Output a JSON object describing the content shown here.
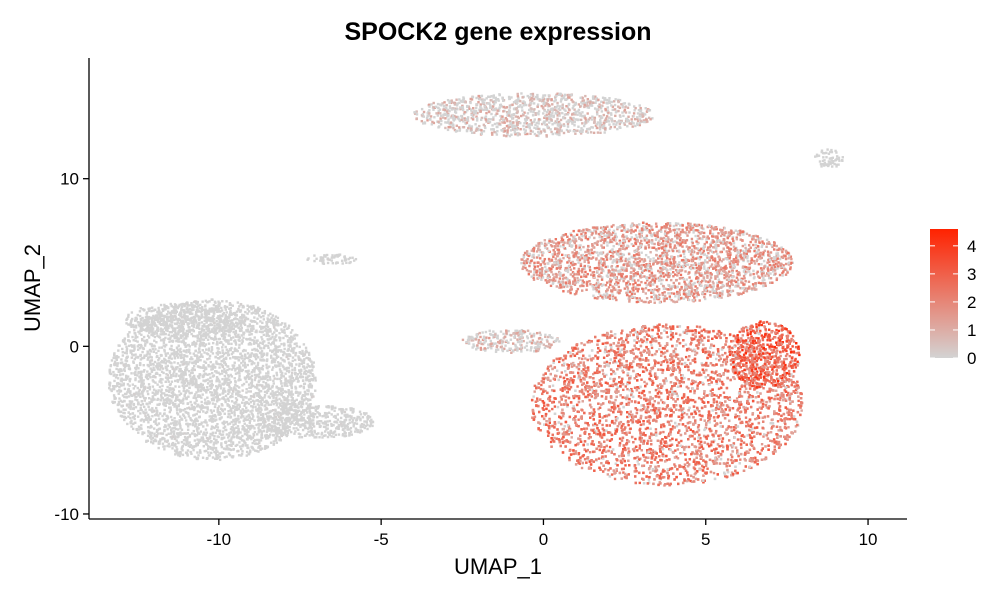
{
  "chart_data": {
    "type": "scatter",
    "title": "SPOCK2 gene expression",
    "xlabel": "UMAP_1",
    "ylabel": "UMAP_2",
    "xlim": [
      -14,
      11.2
    ],
    "ylim": [
      -10.3,
      17.2
    ],
    "x_ticks": [
      -10,
      -5,
      0,
      5,
      10
    ],
    "y_ticks": [
      -10,
      0,
      10
    ],
    "x_tick_labels": [
      "-10",
      "-5",
      "0",
      "5",
      "10"
    ],
    "y_tick_labels": [
      "-10",
      "0",
      "10"
    ],
    "grid": false,
    "legend": {
      "placement": "right",
      "type": "colorbar",
      "min": 0,
      "max": 4.6,
      "ticks": [
        0,
        1,
        2,
        3,
        4
      ],
      "tick_labels": [
        "0",
        "1",
        "2",
        "3",
        "4"
      ],
      "low_color": "#d3d3d3",
      "high_color": "#ff2200"
    },
    "clusters": [
      {
        "name": "left-large-cluster",
        "cx": -10.2,
        "cy": -2.0,
        "rx": 3.2,
        "ry": 4.8,
        "mean_expression": 0.08
      },
      {
        "name": "left-upper-lobe",
        "cx": -11.0,
        "cy": 1.6,
        "rx": 1.9,
        "ry": 1.0,
        "mean_expression": 0.05
      },
      {
        "name": "left-lower-arm",
        "cx": -7.0,
        "cy": -4.5,
        "rx": 1.8,
        "ry": 1.0,
        "mean_expression": 0.06
      },
      {
        "name": "top-cluster",
        "cx": -0.3,
        "cy": 13.8,
        "rx": 3.7,
        "ry": 1.3,
        "mean_expression": 0.9
      },
      {
        "name": "small-top-right-cluster",
        "cx": 8.8,
        "cy": 11.2,
        "rx": 0.45,
        "ry": 0.55,
        "mean_expression": 0.02
      },
      {
        "name": "thin-strand",
        "cx": -6.5,
        "cy": 5.2,
        "rx": 0.8,
        "ry": 0.3,
        "mean_expression": 0.05
      },
      {
        "name": "upper-right-lobe",
        "cx": 3.5,
        "cy": 5.0,
        "rx": 4.2,
        "ry": 2.4,
        "mean_expression": 1.7
      },
      {
        "name": "lower-right-mass",
        "cx": 3.8,
        "cy": -3.5,
        "rx": 4.2,
        "ry": 4.8,
        "mean_expression": 2.2
      },
      {
        "name": "right-edge-band",
        "cx": 6.8,
        "cy": -0.5,
        "rx": 1.1,
        "ry": 2.0,
        "mean_expression": 3.0
      },
      {
        "name": "central-arm",
        "cx": -1.0,
        "cy": 0.3,
        "rx": 1.5,
        "ry": 0.7,
        "mean_expression": 1.0
      }
    ]
  }
}
